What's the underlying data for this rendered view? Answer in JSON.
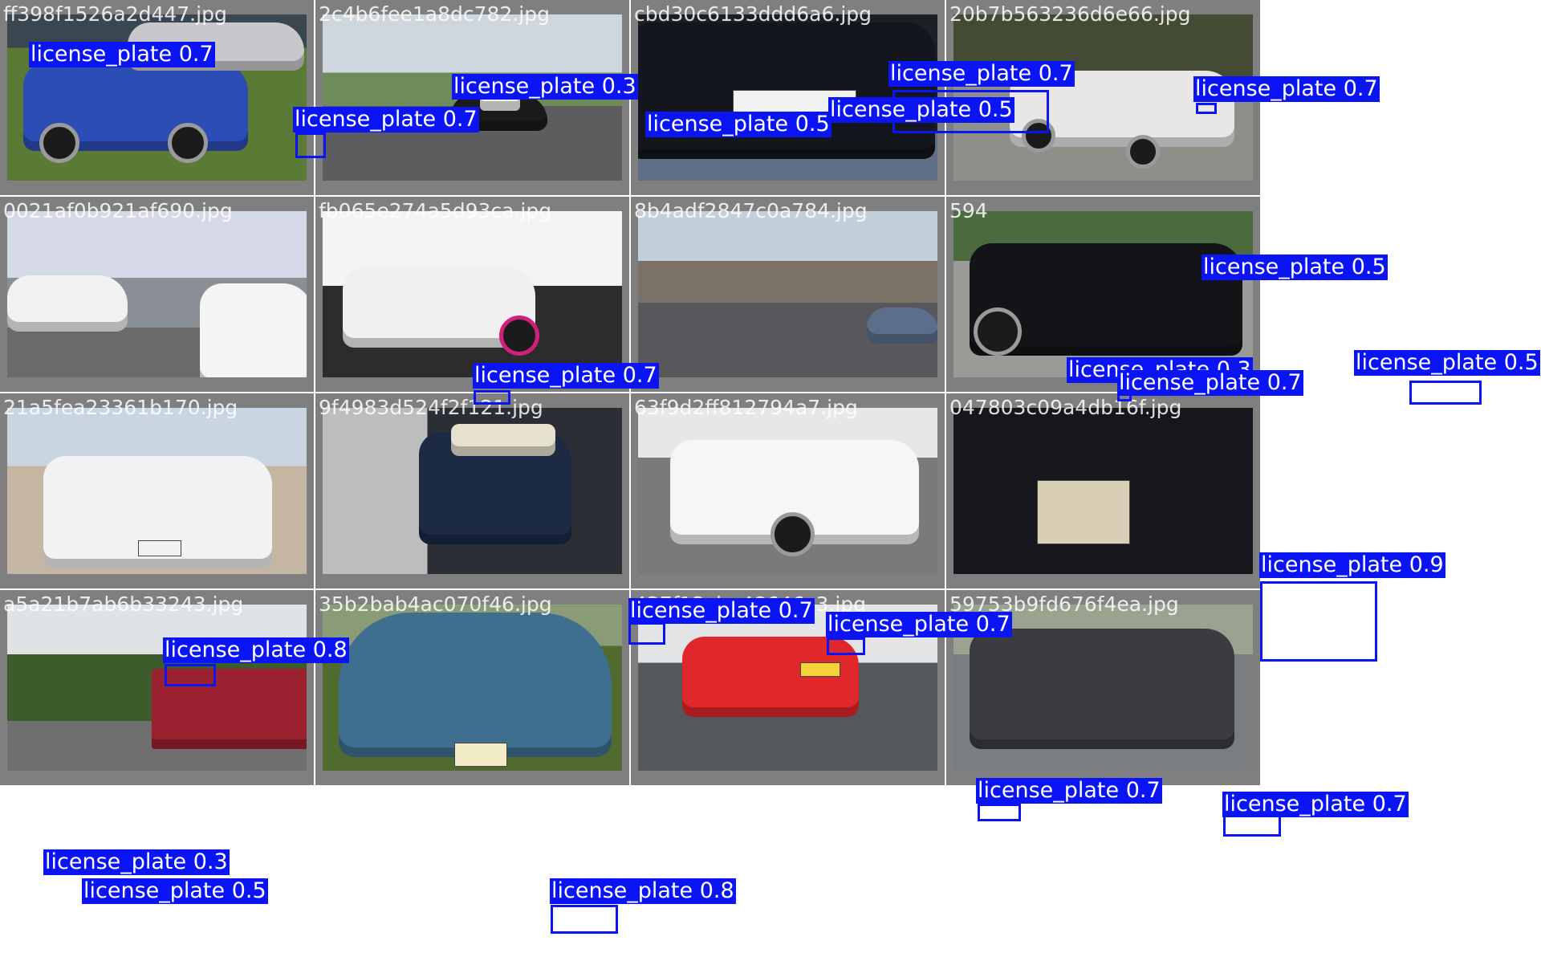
{
  "colors": {
    "tile_border": "#7f7f7f",
    "box": "#0a14f4",
    "box_text": "#ffffff",
    "filename_text": "#ffffff"
  },
  "tiles": [
    {
      "filename": "ff398f1526a2d447.jpg",
      "scene": "blue sedan on grass",
      "labels": [
        "license_plate 0.7",
        "license_plate 0.7"
      ]
    },
    {
      "filename": "2c4b6fee1a8dc782.jpg",
      "scene": "police car on road",
      "labels": [
        "license_plate 0.3",
        "license_plate 0.5"
      ]
    },
    {
      "filename": "cbd30c6133ddd6a6.jpg",
      "scene": "dark sedan rear close-up",
      "labels": [
        "license_plate 0.7",
        "license_plate 0.5"
      ]
    },
    {
      "filename": "20b7b563236d6e66.jpg",
      "scene": "white hatchback by road",
      "labels": [
        "license_plate 0.7"
      ]
    },
    {
      "filename": "0021af0b921af690.jpg",
      "scene": "police station with white vans",
      "labels": []
    },
    {
      "filename": "fb065e274a5d93ca.jpg",
      "scene": "white sports car with wing",
      "labels": [
        "license_plate 0.7"
      ]
    },
    {
      "filename": "8b4adf2847c0a784.jpg",
      "scene": "city avenue with crowd",
      "labels": [
        "license_plate 0.3",
        "license_plate 0.7"
      ]
    },
    {
      "filename": "594",
      "scene": "black sports car front",
      "labels": [
        "license_plate 0.5",
        "license_plate 0.5"
      ]
    },
    {
      "filename": "21a5fea23361b170.jpg",
      "scene": "white pickup rear",
      "labels": [
        "license_plate 0.8"
      ]
    },
    {
      "filename": "9f4983d524f2f121.jpg",
      "scene": "SUV on sidewalk",
      "labels": [
        "license_plate 0.7"
      ]
    },
    {
      "filename": "63f9d2ff812794a7.jpg",
      "scene": "white hatchback street",
      "labels": [
        "license_plate 0.7"
      ]
    },
    {
      "filename": "047803c09a4db16f.jpg",
      "scene": "license plate close-up",
      "labels": [
        "license_plate 0.9"
      ]
    },
    {
      "filename": "a5a21b7ab6b33243.jpg",
      "scene": "red truck trailer",
      "labels": [
        "license_plate 0.3",
        "license_plate 0.5"
      ]
    },
    {
      "filename": "35b2bab4ac070f46.jpg",
      "scene": "vintage blue car front",
      "labels": [
        "license_plate 0.8"
      ]
    },
    {
      "filename": "437f13cba48646c3.jpg",
      "scene": "red sedan rear",
      "labels": [
        "license_plate 0.7"
      ]
    },
    {
      "filename": "59753b9fd676f4ea.jpg",
      "scene": "grey hatchback rear",
      "labels": [
        "license_plate 0.7"
      ]
    }
  ]
}
